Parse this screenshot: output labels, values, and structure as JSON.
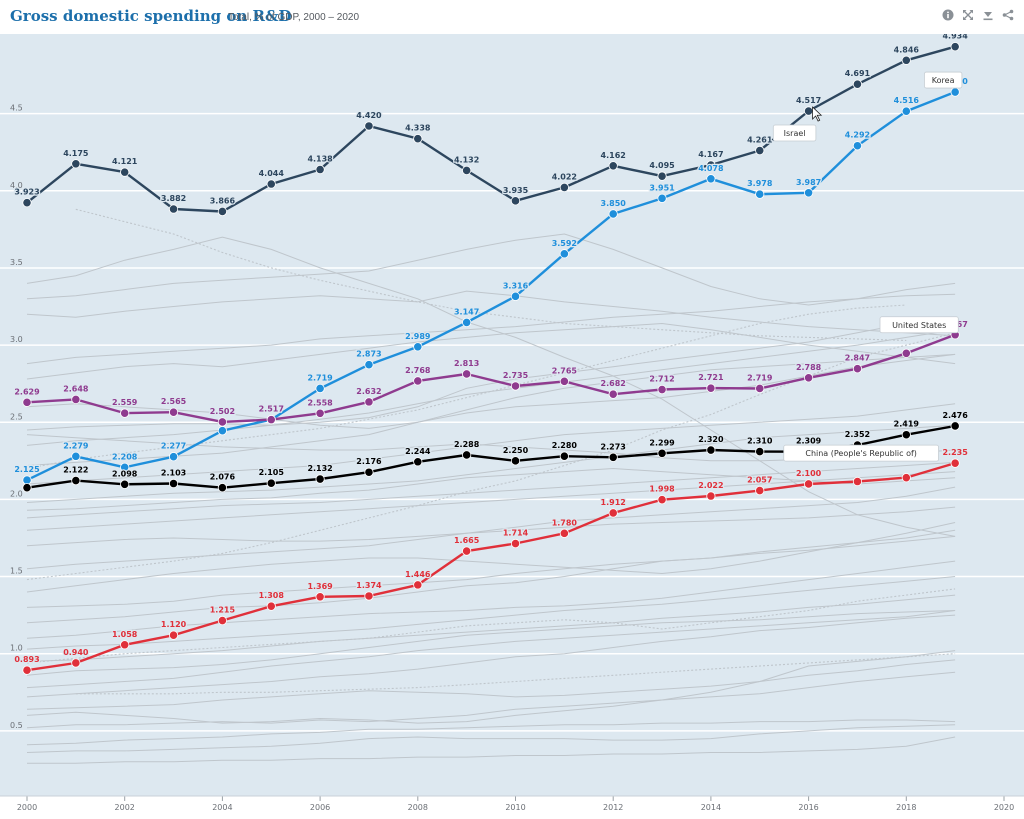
{
  "header": {
    "title": "Gross domestic spending on R&D",
    "subtitle": "Total, % of GDP, 2000 – 2020"
  },
  "toolbar": {
    "icons": [
      "info-icon",
      "fullscreen-icon",
      "download-icon",
      "share-icon"
    ]
  },
  "colors": {
    "background": "#dde8f0",
    "grid": "#ffffff",
    "israel": "#2d465e",
    "korea": "#1f8fdb",
    "united_states": "#8f3b8f",
    "oecd": "#000000",
    "china": "#e0303a",
    "others": "#bfc6cc"
  },
  "chart_data": {
    "type": "line",
    "title": "Gross domestic spending on R&D",
    "subtitle": "Total, % of GDP, 2000 – 2020",
    "xlim": [
      2000,
      2020
    ],
    "ylim": [
      0,
      5
    ],
    "x_ticks": [
      2000,
      2002,
      2004,
      2006,
      2008,
      2010,
      2012,
      2014,
      2016,
      2018,
      2020
    ],
    "y_ticks": [
      0.5,
      1.0,
      1.5,
      2.0,
      2.5,
      3.0,
      3.5,
      4.0,
      4.5
    ],
    "y_tick_labels": [
      "0.5",
      "1.0",
      "1.5",
      "2.0",
      "2.5",
      "3.0",
      "3.5",
      "4.0",
      "4.5"
    ],
    "grid": true,
    "x": [
      2000,
      2001,
      2002,
      2003,
      2004,
      2005,
      2006,
      2007,
      2008,
      2009,
      2010,
      2011,
      2012,
      2013,
      2014,
      2015,
      2016,
      2017,
      2018,
      2019
    ],
    "series": [
      {
        "name": "Israel",
        "color": "#2d465e",
        "values": [
          3.923,
          4.175,
          4.121,
          3.882,
          3.866,
          4.044,
          4.138,
          4.42,
          4.338,
          4.132,
          3.935,
          4.022,
          4.162,
          4.095,
          4.167,
          4.261,
          4.517,
          4.691,
          4.846,
          4.934
        ],
        "labels": [
          "3.923",
          "4.175",
          "4.121",
          "3.882",
          "3.866",
          "4.044",
          "4.138",
          "4.420",
          "4.338",
          "4.132",
          "3.935",
          "4.022",
          "4.162",
          "4.095",
          "4.167",
          "4.261",
          "4.517",
          "4.691",
          "4.846",
          "4.934"
        ]
      },
      {
        "name": "Korea",
        "color": "#1f8fdb",
        "values": [
          2.125,
          2.279,
          2.208,
          2.277,
          2.445,
          2.517,
          2.719,
          2.873,
          2.989,
          3.147,
          3.316,
          3.592,
          3.85,
          3.951,
          4.078,
          3.978,
          3.987,
          4.292,
          4.516,
          4.64
        ],
        "labels": [
          "2.125",
          "2.279",
          "2.208",
          "2.277",
          "",
          "",
          "2.719",
          "2.873",
          "2.989",
          "3.147",
          "3.316",
          "3.592",
          "3.850",
          "3.951",
          "4.078",
          "3.978",
          "3.987",
          "4.292",
          "4.516",
          "4.640"
        ]
      },
      {
        "name": "United States",
        "color": "#8f3b8f",
        "values": [
          2.629,
          2.648,
          2.559,
          2.565,
          2.502,
          2.517,
          2.558,
          2.632,
          2.768,
          2.813,
          2.735,
          2.765,
          2.682,
          2.712,
          2.721,
          2.719,
          2.788,
          2.847,
          2.947,
          3.067
        ],
        "labels": [
          "2.629",
          "2.648",
          "2.559",
          "2.565",
          "2.502",
          "2.517",
          "2.558",
          "2.632",
          "2.768",
          "2.813",
          "2.735",
          "2.765",
          "2.682",
          "2.712",
          "2.721",
          "2.719",
          "2.788",
          "2.847",
          "",
          "3.067"
        ]
      },
      {
        "name": "OECD",
        "color": "#000000",
        "values": [
          2.076,
          2.122,
          2.098,
          2.103,
          2.076,
          2.105,
          2.132,
          2.176,
          2.244,
          2.288,
          2.25,
          2.28,
          2.273,
          2.299,
          2.32,
          2.31,
          2.309,
          2.352,
          2.419,
          2.476
        ],
        "labels": [
          "",
          "2.122",
          "2.098",
          "2.103",
          "2.076",
          "2.105",
          "2.132",
          "2.176",
          "2.244",
          "2.288",
          "2.250",
          "2.280",
          "2.273",
          "2.299",
          "2.320",
          "2.310",
          "2.309",
          "2.352",
          "2.419",
          "2.476"
        ]
      },
      {
        "name": "China (People's Republic of)",
        "color": "#e0303a",
        "values": [
          0.893,
          0.94,
          1.058,
          1.12,
          1.215,
          1.308,
          1.369,
          1.374,
          1.446,
          1.665,
          1.714,
          1.78,
          1.912,
          1.998,
          2.022,
          2.057,
          2.1,
          2.116,
          2.141,
          2.235
        ],
        "labels": [
          "0.893",
          "0.940",
          "1.058",
          "1.120",
          "1.215",
          "1.308",
          "1.369",
          "1.374",
          "1.446",
          "1.665",
          "1.714",
          "1.780",
          "1.912",
          "1.998",
          "2.022",
          "2.057",
          "2.100",
          "",
          "",
          "2.235"
        ]
      }
    ],
    "callouts": [
      {
        "series": "Israel",
        "text": "Israel",
        "year": 2016
      },
      {
        "series": "Korea",
        "text": "Korea",
        "year": 2019
      },
      {
        "series": "United States",
        "text": "United States",
        "year": 2019
      },
      {
        "series": "China (People's Republic of)",
        "text": "China (People's Republic of)",
        "year": 2019
      }
    ],
    "background_series": [
      [
        0.29,
        0.29,
        0.3,
        0.3,
        0.31,
        0.31,
        0.32,
        0.32,
        0.33,
        0.33,
        0.34,
        0.34,
        0.35,
        0.35,
        0.36,
        0.36,
        0.37,
        0.38,
        0.4,
        0.46
      ],
      [
        0.36,
        0.37,
        0.37,
        0.38,
        0.39,
        0.4,
        0.42,
        0.45,
        0.46,
        0.45,
        0.45,
        0.45,
        0.44,
        0.44,
        0.45,
        0.48,
        0.5,
        0.52,
        0.53,
        0.54
      ],
      [
        0.41,
        0.42,
        0.44,
        0.45,
        0.46,
        0.48,
        0.49,
        0.51,
        0.51,
        0.52,
        0.53,
        0.54,
        0.54,
        0.55,
        0.55,
        0.56,
        0.56,
        0.57,
        0.57,
        0.56
      ],
      [
        0.52,
        0.54,
        0.54,
        0.55,
        0.56,
        0.55,
        0.57,
        0.56,
        0.58,
        0.6,
        0.64,
        0.66,
        0.68,
        0.7,
        0.72,
        0.74,
        0.78,
        0.82,
        0.85,
        0.88
      ],
      [
        0.6,
        0.62,
        0.6,
        0.58,
        0.55,
        0.56,
        0.58,
        0.57,
        0.55,
        0.56,
        0.6,
        0.63,
        0.66,
        0.7,
        0.75,
        0.82,
        0.92,
        0.95,
        0.98,
        1.02
      ],
      [
        0.64,
        0.65,
        0.66,
        0.67,
        0.7,
        0.72,
        0.74,
        0.76,
        0.75,
        0.74,
        0.72,
        0.73,
        0.75,
        0.77,
        0.79,
        0.82,
        0.86,
        0.89,
        0.93,
        0.96
      ],
      [
        0.72,
        0.74,
        0.76,
        0.78,
        0.8,
        0.82,
        0.85,
        0.87,
        0.9,
        0.94,
        0.98,
        1.0,
        1.04,
        1.08,
        1.11,
        1.15,
        1.17,
        1.2,
        1.23,
        1.25
      ],
      [
        0.78,
        0.8,
        0.82,
        0.84,
        0.88,
        0.92,
        0.95,
        0.98,
        1.02,
        1.05,
        1.08,
        1.1,
        1.12,
        1.14,
        1.16,
        1.18,
        1.2,
        1.22,
        1.24,
        1.28
      ],
      [
        0.86,
        0.89,
        0.9,
        0.91,
        0.93,
        0.96,
        1.0,
        1.04,
        1.08,
        1.12,
        1.14,
        1.16,
        1.18,
        1.2,
        1.21,
        1.22,
        1.24,
        1.26,
        1.27,
        1.28
      ],
      [
        0.95,
        0.96,
        0.98,
        1.0,
        1.02,
        1.05,
        1.08,
        1.1,
        1.12,
        1.14,
        1.16,
        1.18,
        1.2,
        1.23,
        1.25,
        1.27,
        1.3,
        1.32,
        1.35,
        1.38
      ],
      [
        1.03,
        1.05,
        1.06,
        1.08,
        1.1,
        1.12,
        1.14,
        1.16,
        1.19,
        1.22,
        1.25,
        1.28,
        1.3,
        1.32,
        1.35,
        1.38,
        1.41,
        1.44,
        1.47,
        1.5
      ],
      [
        1.1,
        1.12,
        1.15,
        1.18,
        1.2,
        1.22,
        1.24,
        1.26,
        1.27,
        1.28,
        1.3,
        1.31,
        1.33,
        1.36,
        1.4,
        1.44,
        1.48,
        1.52,
        1.56,
        1.6
      ],
      [
        1.2,
        1.22,
        1.24,
        1.27,
        1.3,
        1.31,
        1.33,
        1.36,
        1.4,
        1.44,
        1.46,
        1.5,
        1.55,
        1.6,
        1.62,
        1.65,
        1.67,
        1.7,
        1.73,
        1.76
      ],
      [
        1.3,
        1.31,
        1.32,
        1.34,
        1.38,
        1.4,
        1.42,
        1.44,
        1.46,
        1.48,
        1.52,
        1.55,
        1.58,
        1.6,
        1.62,
        1.66,
        1.69,
        1.72,
        1.75,
        1.8
      ],
      [
        1.4,
        1.44,
        1.48,
        1.52,
        1.55,
        1.58,
        1.6,
        1.62,
        1.62,
        1.6,
        1.58,
        1.56,
        1.54,
        1.52,
        1.55,
        1.6,
        1.66,
        1.72,
        1.78,
        1.85
      ],
      [
        1.55,
        1.58,
        1.6,
        1.62,
        1.64,
        1.66,
        1.68,
        1.7,
        1.74,
        1.78,
        1.82,
        1.86,
        1.88,
        1.9,
        1.92,
        1.94,
        1.96,
        1.98,
        2.02,
        2.08
      ],
      [
        1.7,
        1.72,
        1.74,
        1.75,
        1.74,
        1.73,
        1.73,
        1.74,
        1.76,
        1.78,
        1.8,
        1.82,
        1.84,
        1.85,
        1.86,
        1.87,
        1.88,
        1.9,
        1.92,
        1.95
      ],
      [
        1.8,
        1.82,
        1.84,
        1.86,
        1.88,
        1.9,
        1.92,
        1.94,
        1.96,
        1.98,
        2.0,
        2.02,
        2.04,
        2.06,
        2.08,
        2.1,
        2.12,
        2.14,
        2.16,
        2.18
      ],
      [
        1.88,
        1.9,
        1.92,
        1.94,
        1.96,
        1.97,
        1.98,
        2.0,
        2.02,
        2.04,
        2.06,
        2.08,
        2.1,
        2.12,
        2.14,
        2.16,
        2.18,
        2.2,
        2.22,
        2.24
      ],
      [
        1.93,
        1.94,
        1.96,
        1.98,
        2.0,
        2.01,
        2.04,
        2.06,
        2.1,
        2.14,
        2.16,
        2.18,
        2.2,
        2.18,
        2.16,
        2.14,
        2.12,
        2.1,
        2.12,
        2.14
      ],
      [
        1.98,
        2.0,
        2.02,
        2.04,
        2.05,
        2.06,
        2.08,
        2.1,
        2.12,
        2.16,
        2.2,
        2.24,
        2.28,
        2.32,
        2.36,
        2.4,
        2.42,
        2.44,
        2.46,
        2.48
      ],
      [
        2.1,
        2.12,
        2.14,
        2.16,
        2.18,
        2.2,
        2.22,
        2.26,
        2.3,
        2.34,
        2.38,
        2.42,
        2.44,
        2.46,
        2.48,
        2.5,
        2.52,
        2.54,
        2.58,
        2.62
      ],
      [
        2.22,
        2.24,
        2.26,
        2.28,
        2.3,
        2.34,
        2.38,
        2.42,
        2.5,
        2.58,
        2.66,
        2.72,
        2.76,
        2.8,
        2.84,
        2.86,
        2.88,
        2.9,
        2.92,
        2.94
      ],
      [
        2.35,
        2.38,
        2.4,
        2.42,
        2.45,
        2.48,
        2.52,
        2.56,
        2.62,
        2.68,
        2.72,
        2.76,
        2.8,
        2.84,
        2.88,
        2.92,
        2.96,
        3.0,
        3.05,
        3.1
      ],
      [
        2.45,
        2.47,
        2.48,
        2.49,
        2.49,
        2.48,
        2.5,
        2.53,
        2.6,
        2.72,
        2.78,
        2.82,
        2.86,
        2.9,
        2.94,
        2.98,
        3.02,
        3.08,
        3.14,
        3.18
      ],
      [
        2.6,
        2.62,
        2.6,
        2.58,
        2.56,
        2.52,
        2.48,
        2.46,
        2.5,
        2.56,
        2.6,
        2.62,
        2.64,
        2.66,
        2.7,
        2.74,
        2.8,
        2.86,
        2.9,
        2.94
      ],
      [
        2.78,
        2.82,
        2.86,
        2.88,
        2.86,
        2.9,
        2.94,
        2.98,
        3.02,
        3.05,
        3.08,
        3.1,
        3.12,
        3.14,
        3.1,
        3.05,
        3.0,
        2.96,
        2.92,
        2.88
      ],
      [
        2.88,
        2.92,
        2.94,
        2.96,
        2.98,
        3.0,
        3.04,
        3.06,
        3.08,
        3.1,
        3.12,
        3.15,
        3.18,
        3.2,
        3.22,
        3.25,
        3.28,
        3.3,
        3.32,
        3.33
      ],
      [
        3.2,
        3.18,
        3.22,
        3.25,
        3.28,
        3.3,
        3.32,
        3.3,
        3.28,
        3.35,
        3.32,
        3.28,
        3.25,
        3.22,
        3.18,
        3.15,
        3.12,
        3.1,
        3.08,
        3.06
      ],
      [
        3.3,
        3.32,
        3.36,
        3.4,
        3.42,
        3.44,
        3.46,
        3.48,
        3.55,
        3.62,
        3.68,
        3.72,
        3.62,
        3.5,
        3.38,
        3.3,
        3.26,
        3.3,
        3.36,
        3.4
      ],
      [
        3.4,
        3.45,
        3.55,
        3.62,
        3.7,
        3.62,
        3.5,
        3.4,
        3.3,
        3.15,
        3.05,
        2.92,
        2.8,
        2.65,
        2.45,
        2.25,
        2.05,
        1.9,
        1.82,
        1.76
      ],
      [
        2.42,
        2.4,
        2.38,
        2.36,
        2.34,
        2.33,
        2.32,
        2.32,
        2.34,
        2.36,
        2.34,
        2.32,
        2.3,
        2.27,
        2.25,
        2.25,
        2.26,
        2.28,
        2.3,
        2.32
      ]
    ],
    "dotted_series": [
      [
        null,
        3.88,
        3.8,
        3.72,
        3.6,
        3.5,
        3.42,
        3.35,
        3.28,
        3.22,
        3.18,
        3.14,
        3.12,
        3.1,
        3.08,
        3.06,
        3.05,
        3.04,
        3.03,
        null
      ],
      [
        1.48,
        1.52,
        1.56,
        1.6,
        1.65,
        1.72,
        1.8,
        1.88,
        1.96,
        2.05,
        2.12,
        2.22,
        2.32,
        2.45,
        2.55,
        2.68,
        2.8,
        2.92,
        3.0,
        3.08
      ],
      [
        2.2,
        2.26,
        2.3,
        2.34,
        2.38,
        2.42,
        2.46,
        2.52,
        2.58,
        2.66,
        2.74,
        2.82,
        2.9,
        2.98,
        3.06,
        3.14,
        3.2,
        3.24,
        3.26,
        null
      ],
      [
        0.94,
        0.97,
        1.0,
        1.02,
        1.04,
        1.06,
        1.08,
        1.1,
        1.14,
        1.18,
        1.2,
        1.22,
        1.2,
        1.16,
        1.2,
        1.24,
        1.28,
        1.34,
        1.38,
        1.42
      ],
      [
        null,
        0.74,
        0.74,
        0.74,
        0.75,
        0.75,
        0.76,
        0.77,
        0.78,
        0.8,
        0.82,
        0.84,
        0.86,
        0.88,
        0.9,
        0.92,
        0.94,
        0.96,
        0.98,
        1.0
      ]
    ]
  }
}
